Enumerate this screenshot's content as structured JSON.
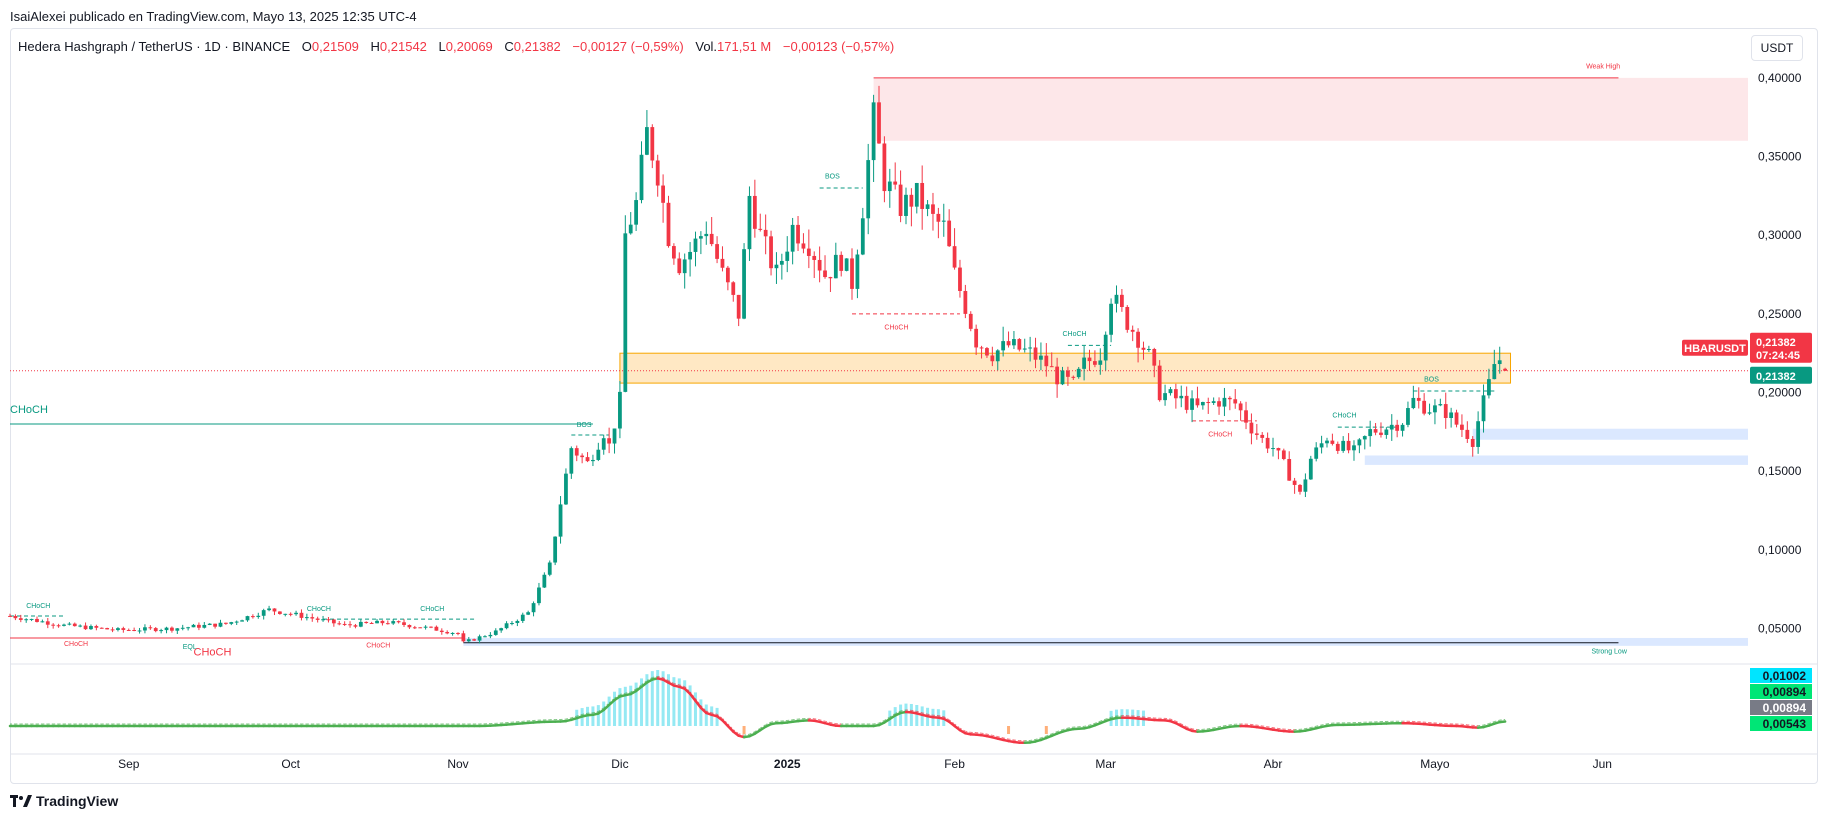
{
  "header": {
    "publisher": "IsaiAlexei publicado en TradingView.com, Mayo 13, 2025 12:35 UTC-4",
    "symbol": "Hedera Hashgraph / TetherUS · 1D · BINANCE",
    "o_label": "O",
    "o_value": "0,21509",
    "h_label": "H",
    "h_value": "0,21542",
    "l_label": "L",
    "l_value": "0,20069",
    "c_label": "C",
    "c_value": "0,21382",
    "change": "−0,00127 (−0,59%)",
    "vol_label": "Vol.",
    "vol_value": "171,51 M",
    "vol_change": "−0,00123 (−0,57%)",
    "currency": "USDT"
  },
  "footer": {
    "brand": "TradingView"
  },
  "colors": {
    "up": "#089981",
    "down": "#f23645",
    "ob_fill": "#fde7e9",
    "orange_fill": "#ffe8c4",
    "orange_stroke": "#f7a600",
    "blue_fill": "#dbe8ff",
    "osc_green": "#4caf50",
    "osc_red": "#f23645",
    "osc_cyan": "#7be3f0",
    "osc_orange": "#ff9b57"
  },
  "chart_data": {
    "type": "candlestick",
    "ylim": [
      0.03,
      0.405
    ],
    "y_ticks": [
      {
        "v": 0.05,
        "label": "0,05000"
      },
      {
        "v": 0.1,
        "label": "0,10000"
      },
      {
        "v": 0.15,
        "label": "0,15000"
      },
      {
        "v": 0.2,
        "label": "0,20000"
      },
      {
        "v": 0.25,
        "label": "0,25000"
      },
      {
        "v": 0.3,
        "label": "0,30000"
      },
      {
        "v": 0.35,
        "label": "0,35000"
      },
      {
        "v": 0.4,
        "label": "0,40000"
      }
    ],
    "x_ticks": [
      {
        "label": "Sep",
        "day": 26,
        "bold": false
      },
      {
        "label": "Oct",
        "day": 56,
        "bold": false
      },
      {
        "label": "Nov",
        "day": 87,
        "bold": false
      },
      {
        "label": "Dic",
        "day": 117,
        "bold": false
      },
      {
        "label": "2025",
        "day": 148,
        "bold": true
      },
      {
        "label": "Feb",
        "day": 179,
        "bold": false
      },
      {
        "label": "Mar",
        "day": 207,
        "bold": false
      },
      {
        "label": "Abr",
        "day": 238,
        "bold": false
      },
      {
        "label": "Mayo",
        "day": 268,
        "bold": false
      },
      {
        "label": "Jun",
        "day": 299,
        "bold": false
      }
    ],
    "x_day_range": [
      4,
      326
    ],
    "anchors": [
      [
        4,
        0.058
      ],
      [
        14,
        0.052
      ],
      [
        24,
        0.049
      ],
      [
        34,
        0.05
      ],
      [
        44,
        0.053
      ],
      [
        52,
        0.062
      ],
      [
        58,
        0.058
      ],
      [
        66,
        0.052
      ],
      [
        74,
        0.054
      ],
      [
        82,
        0.05
      ],
      [
        87,
        0.047
      ],
      [
        88,
        0.041
      ],
      [
        94,
        0.048
      ],
      [
        100,
        0.06
      ],
      [
        104,
        0.09
      ],
      [
        106,
        0.13
      ],
      [
        108,
        0.165
      ],
      [
        111,
        0.155
      ],
      [
        114,
        0.175
      ],
      [
        115,
        0.166
      ],
      [
        117,
        0.195
      ],
      [
        118,
        0.3
      ],
      [
        120,
        0.32
      ],
      [
        122,
        0.365
      ],
      [
        124,
        0.34
      ],
      [
        126,
        0.3
      ],
      [
        128,
        0.282
      ],
      [
        130,
        0.29
      ],
      [
        133,
        0.305
      ],
      [
        136,
        0.275
      ],
      [
        139,
        0.25
      ],
      [
        141,
        0.325
      ],
      [
        143,
        0.3
      ],
      [
        146,
        0.275
      ],
      [
        149,
        0.305
      ],
      [
        152,
        0.295
      ],
      [
        155,
        0.275
      ],
      [
        158,
        0.285
      ],
      [
        160,
        0.27
      ],
      [
        162,
        0.318
      ],
      [
        164,
        0.375
      ],
      [
        166,
        0.335
      ],
      [
        169,
        0.318
      ],
      [
        172,
        0.325
      ],
      [
        175,
        0.31
      ],
      [
        177,
        0.305
      ],
      [
        179,
        0.275
      ],
      [
        181,
        0.255
      ],
      [
        183,
        0.233
      ],
      [
        186,
        0.225
      ],
      [
        189,
        0.23
      ],
      [
        193,
        0.225
      ],
      [
        196,
        0.218
      ],
      [
        198,
        0.21
      ],
      [
        201,
        0.205
      ],
      [
        203,
        0.218
      ],
      [
        206,
        0.225
      ],
      [
        208,
        0.262
      ],
      [
        211,
        0.245
      ],
      [
        213,
        0.235
      ],
      [
        215,
        0.223
      ],
      [
        217,
        0.2
      ],
      [
        221,
        0.195
      ],
      [
        224,
        0.19
      ],
      [
        228,
        0.195
      ],
      [
        231,
        0.193
      ],
      [
        234,
        0.178
      ],
      [
        236,
        0.17
      ],
      [
        238,
        0.165
      ],
      [
        241,
        0.148
      ],
      [
        243,
        0.135
      ],
      [
        245,
        0.158
      ],
      [
        248,
        0.172
      ],
      [
        251,
        0.165
      ],
      [
        253,
        0.162
      ],
      [
        256,
        0.175
      ],
      [
        259,
        0.178
      ],
      [
        262,
        0.182
      ],
      [
        264,
        0.195
      ],
      [
        267,
        0.19
      ],
      [
        270,
        0.188
      ],
      [
        272,
        0.18
      ],
      [
        274,
        0.174
      ],
      [
        275,
        0.17
      ],
      [
        276,
        0.182
      ],
      [
        278,
        0.205
      ],
      [
        279,
        0.218
      ],
      [
        280,
        0.221
      ],
      [
        281,
        0.214
      ]
    ],
    "zones": [
      {
        "name": "weak-high-zone",
        "d1": 164,
        "d2": 326,
        "y1": 0.36,
        "y2": 0.4,
        "fill": "#fde7e9",
        "stroke": "none"
      },
      {
        "name": "orange-zone",
        "d1": 117,
        "d2": 282,
        "y1": 0.206,
        "y2": 0.225,
        "fill": "#ffe8c4",
        "stroke": "#f7a600"
      },
      {
        "name": "blue-zone-1",
        "d1": 275,
        "d2": 326,
        "y1": 0.17,
        "y2": 0.177,
        "fill": "#dbe8ff",
        "stroke": "none"
      },
      {
        "name": "blue-zone-2",
        "d1": 255,
        "d2": 326,
        "y1": 0.154,
        "y2": 0.16,
        "fill": "#dbe8ff",
        "stroke": "none"
      },
      {
        "name": "strong-low-zone",
        "d1": 88,
        "d2": 326,
        "y1": 0.039,
        "y2": 0.044,
        "fill": "#dbe8ff",
        "stroke": "none"
      }
    ],
    "lines": [
      {
        "name": "weak-high-line",
        "d1": 164,
        "d2": 302,
        "y": 0.4,
        "color": "#f23645",
        "dash": false
      },
      {
        "name": "choch-left-line",
        "d1": 4,
        "d2": 112,
        "y": 0.18,
        "color": "#089981",
        "dash": false
      },
      {
        "name": "red-low-line",
        "d1": 4,
        "d2": 88,
        "y": 0.044,
        "color": "#f23645",
        "dash": false
      },
      {
        "name": "strong-low-line",
        "d1": 88,
        "d2": 302,
        "y": 0.041,
        "color": "#131722",
        "dash": false
      },
      {
        "name": "bos-line-1",
        "d1": 108,
        "d2": 115,
        "y": 0.173,
        "color": "#089981",
        "dash": true
      },
      {
        "name": "bos-line-2",
        "d1": 154,
        "d2": 162,
        "y": 0.33,
        "color": "#089981",
        "dash": true
      },
      {
        "name": "choch-line-feb",
        "d1": 160,
        "d2": 180,
        "y": 0.25,
        "color": "#f23645",
        "dash": true
      },
      {
        "name": "choch-line-mar",
        "d1": 200,
        "d2": 208,
        "y": 0.23,
        "color": "#089981",
        "dash": true
      },
      {
        "name": "choch-line-mar-red",
        "d1": 223,
        "d2": 235,
        "y": 0.182,
        "color": "#f23645",
        "dash": true
      },
      {
        "name": "choch-line-apr",
        "d1": 250,
        "d2": 262,
        "y": 0.178,
        "color": "#089981",
        "dash": true
      },
      {
        "name": "bos-line-may",
        "d1": 264,
        "d2": 279,
        "y": 0.201,
        "color": "#089981",
        "dash": true
      },
      {
        "name": "choch-line-aug",
        "d1": 4,
        "d2": 14,
        "y": 0.058,
        "color": "#089981",
        "dash": true
      },
      {
        "name": "choch-line-oct",
        "d1": 62,
        "d2": 90,
        "y": 0.056,
        "color": "#089981",
        "dash": true
      }
    ],
    "labels": [
      {
        "name": "weak-high-label",
        "text": "Weak High",
        "d": 296,
        "y": 0.406,
        "color": "#f23645",
        "size": 7
      },
      {
        "name": "strong-low-label",
        "text": "Strong Low",
        "d": 297,
        "y": 0.034,
        "color": "#089981",
        "size": 7
      },
      {
        "name": "choch-big-left",
        "text": "CHoCH",
        "d": 4,
        "y": 0.187,
        "color": "#089981",
        "size": 11
      },
      {
        "name": "choch-big-bottom",
        "text": "CHoCH",
        "d": 38,
        "y": 0.033,
        "color": "#f23645",
        "size": 11
      },
      {
        "name": "bos-label-1",
        "text": "BOS",
        "d": 109,
        "y": 0.178,
        "color": "#089981",
        "size": 7
      },
      {
        "name": "bos-label-2",
        "text": "BOS",
        "d": 155,
        "y": 0.336,
        "color": "#089981",
        "size": 7
      },
      {
        "name": "choch-label-feb",
        "text": "CHoCH",
        "d": 166,
        "y": 0.24,
        "color": "#f23645",
        "size": 7
      },
      {
        "name": "choch-label-mar",
        "text": "CHoCH",
        "d": 199,
        "y": 0.236,
        "color": "#089981",
        "size": 7
      },
      {
        "name": "choch-label-mar-red",
        "text": "CHoCH",
        "d": 226,
        "y": 0.172,
        "color": "#f23645",
        "size": 7
      },
      {
        "name": "choch-label-apr",
        "text": "CHoCH",
        "d": 249,
        "y": 0.184,
        "color": "#089981",
        "size": 7
      },
      {
        "name": "bos-label-may",
        "text": "BOS",
        "d": 266,
        "y": 0.207,
        "color": "#089981",
        "size": 7
      },
      {
        "name": "choch-label-aug",
        "text": "CHoCH",
        "d": 7,
        "y": 0.063,
        "color": "#089981",
        "size": 7
      },
      {
        "name": "choch-label-sep-red",
        "text": "CHoCH",
        "d": 14,
        "y": 0.039,
        "color": "#f23645",
        "size": 7
      },
      {
        "name": "eql-label",
        "text": "EQL",
        "d": 36,
        "y": 0.037,
        "color": "#089981",
        "size": 7
      },
      {
        "name": "choch-label-sep",
        "text": "CHoCH",
        "d": 59,
        "y": 0.061,
        "color": "#089981",
        "size": 7
      },
      {
        "name": "choch-label-oct-red",
        "text": "CHoCH",
        "d": 70,
        "y": 0.038,
        "color": "#f23645",
        "size": 7
      },
      {
        "name": "choch-label-oct",
        "text": "CHoCH",
        "d": 80,
        "y": 0.061,
        "color": "#089981",
        "size": 7
      }
    ],
    "price_line": {
      "y": 0.21382
    },
    "price_tags": {
      "symbol": "HBARUSDT",
      "price": "0,21382",
      "countdown": "07:24:45",
      "close": "0,21382"
    },
    "oscillator": {
      "values": [
        {
          "label": "0,01002",
          "bg": "#00e5ff",
          "color": "#131722"
        },
        {
          "label": "0,00894",
          "bg": "#00e676",
          "color": "#131722"
        },
        {
          "label": "0,00894",
          "bg": "#787b86",
          "color": "#ffffff"
        },
        {
          "label": "0,00543",
          "bg": "#00e676",
          "color": "#131722"
        }
      ],
      "anchors": [
        [
          4,
          0.0
        ],
        [
          30,
          0.0
        ],
        [
          60,
          0.0
        ],
        [
          90,
          0.0
        ],
        [
          106,
          0.08
        ],
        [
          112,
          0.2
        ],
        [
          118,
          0.55
        ],
        [
          124,
          0.85
        ],
        [
          128,
          0.7
        ],
        [
          134,
          0.2
        ],
        [
          140,
          -0.2
        ],
        [
          146,
          0.05
        ],
        [
          152,
          0.1
        ],
        [
          158,
          0.0
        ],
        [
          164,
          0.0
        ],
        [
          170,
          0.25
        ],
        [
          176,
          0.15
        ],
        [
          182,
          -0.15
        ],
        [
          192,
          -0.3
        ],
        [
          202,
          -0.05
        ],
        [
          210,
          0.15
        ],
        [
          218,
          0.1
        ],
        [
          224,
          -0.1
        ],
        [
          232,
          0.0
        ],
        [
          242,
          -0.1
        ],
        [
          250,
          0.02
        ],
        [
          262,
          0.05
        ],
        [
          272,
          0.0
        ],
        [
          276,
          -0.03
        ],
        [
          281,
          0.08
        ]
      ]
    }
  }
}
